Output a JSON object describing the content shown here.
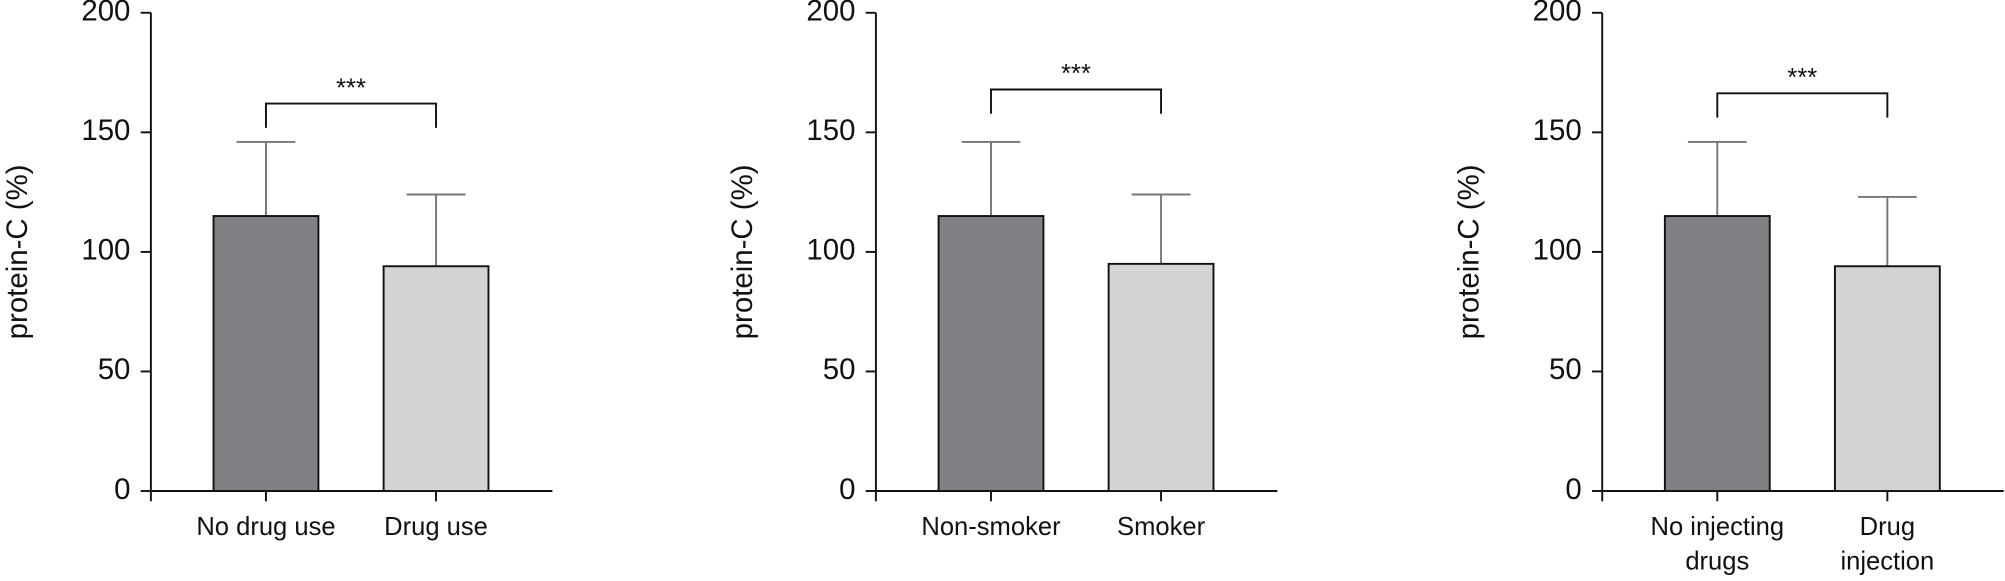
{
  "chart_data": [
    {
      "type": "bar",
      "ylabel": "protein-C (%)",
      "categories": [
        "No drug use",
        "Drug use"
      ],
      "values": [
        115,
        94
      ],
      "errors": [
        31,
        30
      ],
      "colors": [
        "#808085",
        "#d3d4d6"
      ],
      "ylim": [
        0,
        200
      ],
      "yticks": [
        0,
        50,
        100,
        150,
        200
      ],
      "annotation": "***"
    },
    {
      "type": "bar",
      "ylabel": "protein-C (%)",
      "categories": [
        "Non-smoker",
        "Smoker"
      ],
      "values": [
        115,
        95
      ],
      "errors": [
        31,
        29
      ],
      "colors": [
        "#808085",
        "#d3d4d6"
      ],
      "ylim": [
        0,
        200
      ],
      "yticks": [
        0,
        50,
        100,
        150,
        200
      ],
      "annotation": "***"
    },
    {
      "type": "bar",
      "ylabel": "protein-C (%)",
      "categories": [
        "No injecting\ndrugs",
        "Drug\ninjection"
      ],
      "values": [
        115,
        94
      ],
      "errors": [
        31,
        29
      ],
      "colors": [
        "#808085",
        "#d3d4d6"
      ],
      "ylim": [
        0,
        200
      ],
      "yticks": [
        0,
        50,
        100,
        150,
        200
      ],
      "annotation": "***"
    }
  ]
}
